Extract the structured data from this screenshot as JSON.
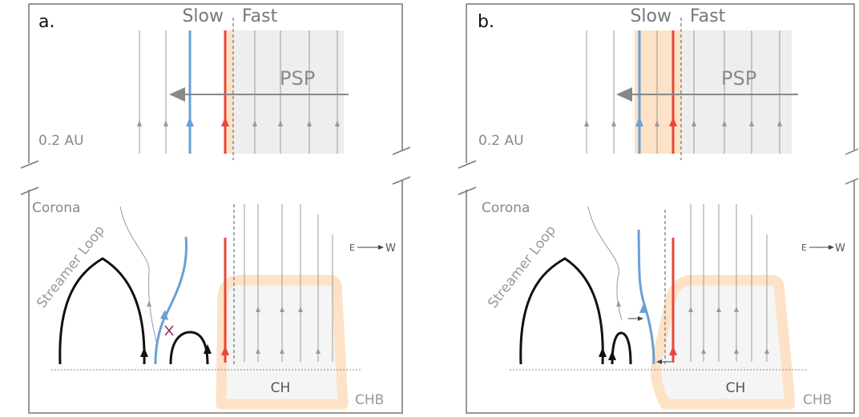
{
  "colors": {
    "slow": "#6a9fd6",
    "fast": "#e8473a",
    "chb": "#fde2c7",
    "fieldline": "#9a9a9a",
    "loop": "#111111",
    "frame": "#777777",
    "shade": "#eeeeee",
    "cross": "#9b2a5e"
  },
  "panels": [
    {
      "id": "a",
      "letter": "a.",
      "slow_label": "Slow",
      "fast_label": "Fast",
      "spacecraft_label": "PSP",
      "distance_label": "0.2 AU",
      "corona_label": "Corona",
      "streamer_label": "Streamer Loop",
      "coronal_hole_label": "CH",
      "boundary_label": "CHB",
      "direction_east": "E",
      "direction_west": "W"
    },
    {
      "id": "b",
      "letter": "b.",
      "slow_label": "Slow",
      "fast_label": "Fast",
      "spacecraft_label": "PSP",
      "distance_label": "0.2 AU",
      "corona_label": "Corona",
      "streamer_label": "Streamer Loop",
      "coronal_hole_label": "CH",
      "boundary_label": "CHB",
      "direction_east": "E",
      "direction_west": "W"
    }
  ]
}
